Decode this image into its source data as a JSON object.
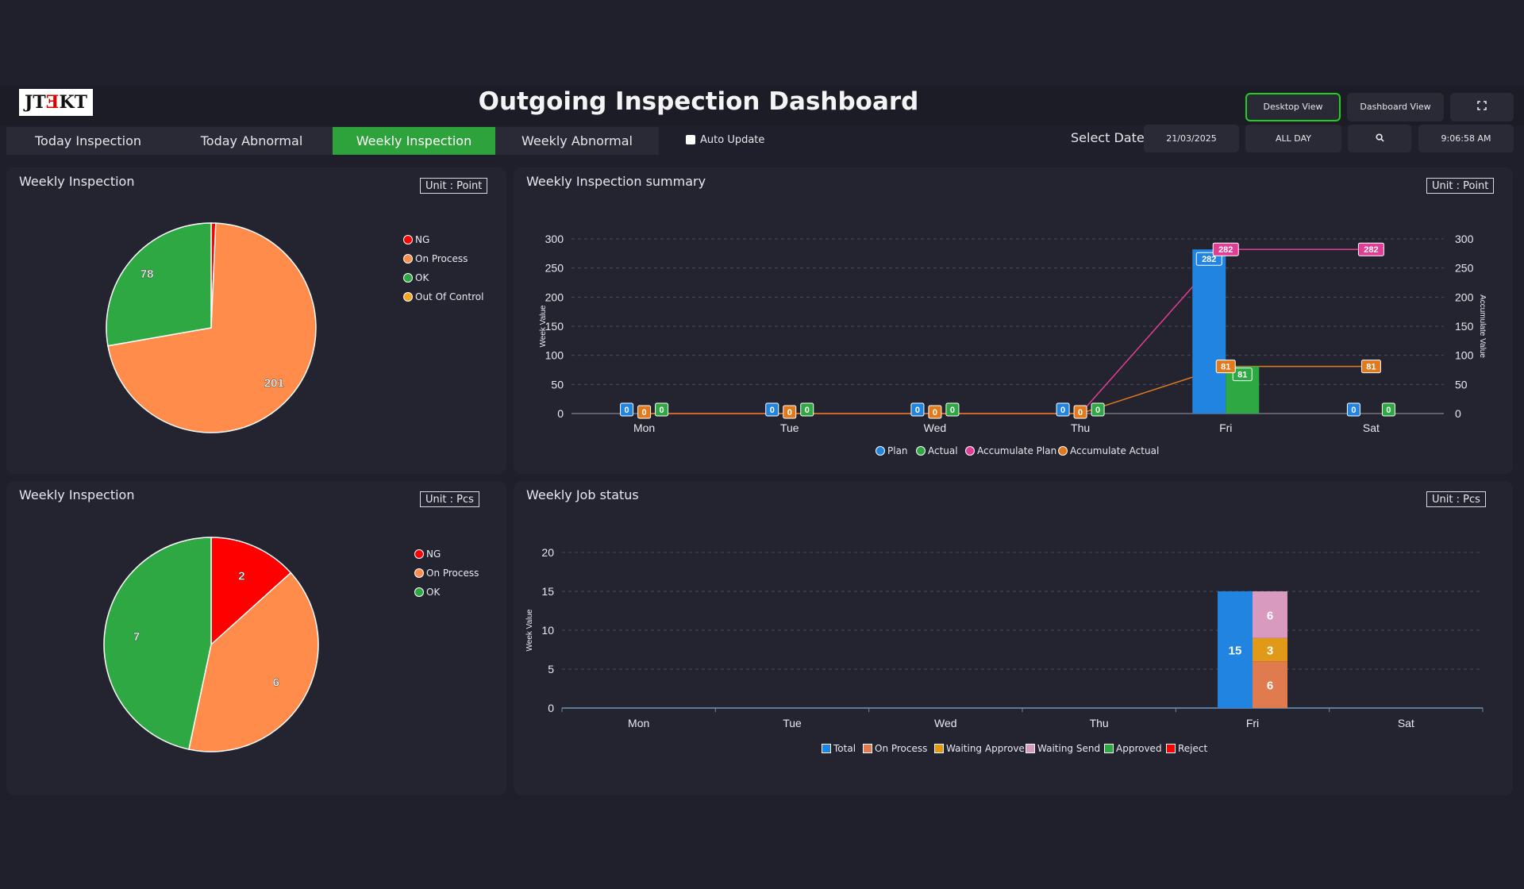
{
  "header": {
    "logo": "JTEKT",
    "title": "Outgoing Inspection Dashboard",
    "desktop_view": "Desktop View",
    "dashboard_view": "Dashboard View",
    "fullscreen_icon": "fullscreen-icon"
  },
  "tabs": [
    {
      "label": "Today Inspection",
      "active": false
    },
    {
      "label": "Today Abnormal",
      "active": false
    },
    {
      "label": "Weekly Inspection",
      "active": true
    },
    {
      "label": "Weekly Abnormal",
      "active": false
    }
  ],
  "auto_update": {
    "label": "Auto Update",
    "checked": false
  },
  "controls": {
    "select_date_label": "Select Date",
    "date": "21/03/2025",
    "range": "ALL DAY",
    "search_icon": "search-icon",
    "time": "9:06:58 AM"
  },
  "colors": {
    "ng": "#ff0000",
    "on_process": "#ff8c4a",
    "ok": "#2ea843",
    "out_of_control": "#f5a623",
    "plan": "#2084e0",
    "accum_plan": "#e23d95",
    "accum_actual": "#e07a1c"
  },
  "panel_point": {
    "title": "Weekly Inspection",
    "unit": "Unit : Point",
    "chart_data": {
      "type": "pie",
      "labels": [
        "NG",
        "On Process",
        "OK",
        "Out Of Control"
      ],
      "values": [
        2,
        201,
        78,
        0
      ],
      "colors": [
        "#ff0000",
        "#ff8c4a",
        "#2ea843",
        "#f5a623"
      ]
    }
  },
  "panel_pcs": {
    "title": "Weekly Inspection",
    "unit": "Unit : Pcs",
    "chart_data": {
      "type": "pie",
      "labels": [
        "NG",
        "On Process",
        "OK"
      ],
      "values": [
        2,
        6,
        7
      ],
      "colors": [
        "#ff0000",
        "#ff8c4a",
        "#2ea843"
      ]
    }
  },
  "panel_summary": {
    "title": "Weekly Inspection summary",
    "unit": "Unit : Point",
    "chart_data": {
      "type": "bar",
      "categories": [
        "Mon",
        "Tue",
        "Wed",
        "Thu",
        "Fri",
        "Sat"
      ],
      "ylabel": "Week Value",
      "y2label": "Accumulate Value",
      "ylim": [
        0,
        300
      ],
      "yticks": [
        0,
        50,
        100,
        150,
        200,
        250,
        300
      ],
      "series": [
        {
          "name": "Plan",
          "kind": "bar",
          "values": [
            0,
            0,
            0,
            0,
            282,
            0
          ]
        },
        {
          "name": "Actual",
          "kind": "bar",
          "values": [
            0,
            0,
            0,
            0,
            81,
            0
          ]
        },
        {
          "name": "Accumulate Plan",
          "kind": "line",
          "values": [
            0,
            0,
            0,
            0,
            282,
            282
          ]
        },
        {
          "name": "Accumulate Actual",
          "kind": "line",
          "values": [
            0,
            0,
            0,
            0,
            81,
            81
          ]
        }
      ]
    }
  },
  "panel_job": {
    "title": "Weekly Job status",
    "unit": "Unit : Pcs",
    "chart_data": {
      "type": "bar",
      "categories": [
        "Mon",
        "Tue",
        "Wed",
        "Thu",
        "Fri",
        "Sat"
      ],
      "ylabel": "Week Value",
      "ylim": [
        0,
        20
      ],
      "yticks": [
        0,
        5,
        10,
        15,
        20
      ],
      "series": [
        {
          "name": "Total",
          "stack": "total",
          "values": [
            0,
            0,
            0,
            0,
            15,
            0
          ]
        },
        {
          "name": "On Process",
          "stack": "status",
          "values": [
            0,
            0,
            0,
            0,
            6,
            0
          ]
        },
        {
          "name": "Waiting Approve",
          "stack": "status",
          "values": [
            0,
            0,
            0,
            0,
            3,
            0
          ]
        },
        {
          "name": "Waiting Send",
          "stack": "status",
          "values": [
            0,
            0,
            0,
            0,
            6,
            0
          ]
        },
        {
          "name": "Approved",
          "stack": "status",
          "values": [
            0,
            0,
            0,
            0,
            0,
            0
          ]
        },
        {
          "name": "Reject",
          "stack": "status",
          "values": [
            0,
            0,
            0,
            0,
            0,
            0
          ]
        }
      ],
      "colors": [
        "#2084e0",
        "#e07a4f",
        "#e09a17",
        "#d99ac0",
        "#2ea843",
        "#ff0000"
      ]
    }
  }
}
